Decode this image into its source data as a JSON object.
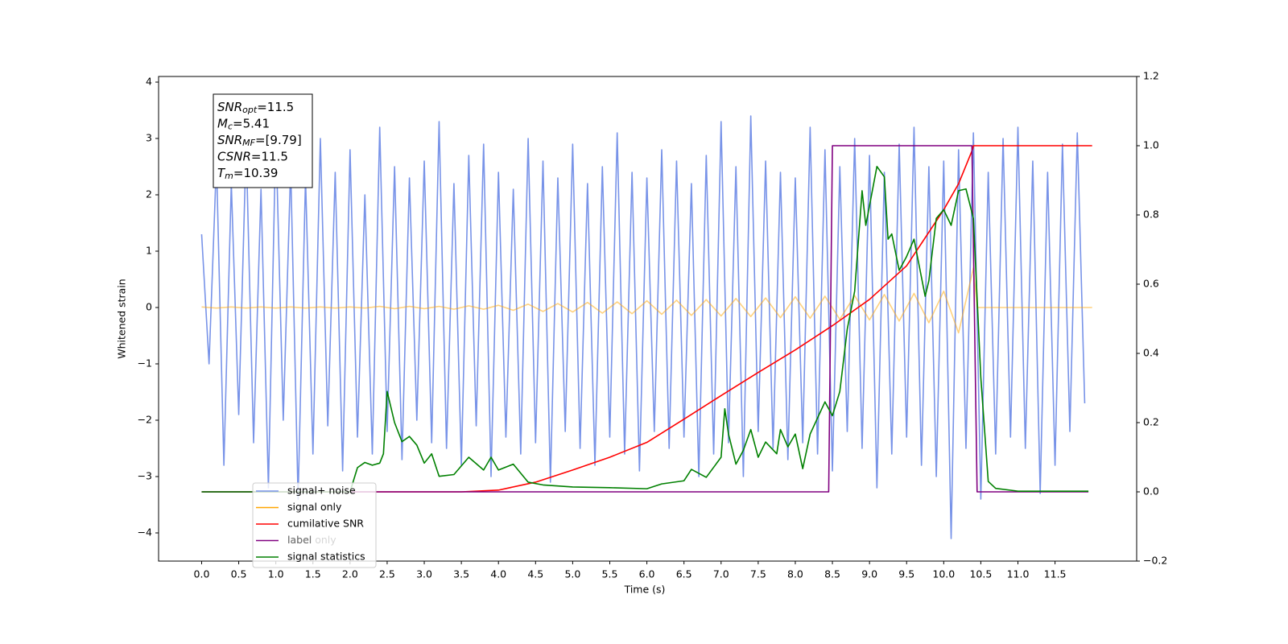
{
  "chart_data": {
    "type": "line",
    "ylabel": "Whitened strain",
    "xlabel": "Time (s)",
    "xlim": [
      -0.58,
      12.6
    ],
    "ylim": [
      -4.5,
      4.1
    ],
    "y2lim": [
      -0.2,
      1.2
    ],
    "xticks": [
      {
        "value": 0,
        "label": "0.0"
      },
      0.5,
      {
        "value": 1,
        "label": "1.0"
      },
      1.5,
      {
        "value": 2,
        "label": "2.0"
      },
      2.5,
      {
        "value": 3,
        "label": "3.0"
      },
      3.5,
      {
        "value": 4,
        "label": "4.0"
      },
      4.5,
      {
        "value": 5,
        "label": "5.0"
      },
      5.5,
      {
        "value": 6,
        "label": "6.0"
      },
      6.5,
      {
        "value": 7,
        "label": "7.0"
      },
      7.5,
      {
        "value": 8,
        "label": "8.0"
      },
      8.5,
      {
        "value": 9,
        "label": "9.0"
      },
      9.5,
      {
        "value": 10,
        "label": "10.0"
      },
      10.5,
      {
        "value": 11,
        "label": "11.0"
      },
      11.5
    ],
    "yticks": [
      {
        "value": -4,
        "label": "−4"
      },
      {
        "value": -3,
        "label": "−3"
      },
      {
        "value": -2,
        "label": "−2"
      },
      {
        "value": -1,
        "label": "−1"
      },
      0,
      1,
      2,
      3,
      4
    ],
    "y2ticks": [
      {
        "value": -0.2,
        "label": "−0.2"
      },
      {
        "value": 0,
        "label": "0.0"
      },
      0.2,
      0.4,
      0.6,
      0.8,
      {
        "value": 1,
        "label": "1.0"
      },
      1.2
    ],
    "legend_loc": "lower left",
    "legend_ghost": "label only",
    "annotations": [
      {
        "base": "SNR",
        "sub": "opt",
        "text": "=11.5"
      },
      {
        "base": "M",
        "sub": "c",
        "text": "=5.41"
      },
      {
        "base": "SNR",
        "sub": "MF",
        "text": "=[9.79]"
      },
      {
        "base": "CSNR",
        "text": "=11.5"
      },
      {
        "base": "T",
        "sub": "m",
        "text": "=10.39"
      }
    ],
    "series": [
      {
        "name": "signal+ noise",
        "color": "#7893e8",
        "opacity": 1,
        "x": [
          0,
          0.1,
          0.2,
          0.3,
          0.4,
          0.5,
          0.6,
          0.7,
          0.8,
          0.9,
          1,
          1.1,
          1.2,
          1.3,
          1.4,
          1.5,
          1.6,
          1.7,
          1.8,
          1.9,
          2,
          2.1,
          2.2,
          2.3,
          2.4,
          2.5,
          2.6,
          2.7,
          2.8,
          2.9,
          3,
          3.1,
          3.2,
          3.3,
          3.4,
          3.5,
          3.6,
          3.7,
          3.8,
          3.9,
          4,
          4.1,
          4.2,
          4.3,
          4.4,
          4.5,
          4.6,
          4.7,
          4.8,
          4.9,
          5,
          5.1,
          5.2,
          5.3,
          5.4,
          5.5,
          5.6,
          5.7,
          5.8,
          5.9,
          6,
          6.1,
          6.2,
          6.3,
          6.4,
          6.5,
          6.6,
          6.7,
          6.8,
          6.9,
          7,
          7.1,
          7.2,
          7.3,
          7.4,
          7.5,
          7.6,
          7.7,
          7.8,
          7.9,
          8,
          8.1,
          8.2,
          8.3,
          8.4,
          8.5,
          8.6,
          8.7,
          8.8,
          8.9,
          9,
          9.1,
          9.2,
          9.3,
          9.4,
          9.5,
          9.6,
          9.7,
          9.8,
          9.9,
          10,
          10.1,
          10.2,
          10.3,
          10.4,
          10.5,
          10.6,
          10.7,
          10.8,
          10.9,
          11,
          11.1,
          11.2,
          11.3,
          11.4,
          11.5,
          11.6,
          11.7,
          11.8,
          11.9
        ],
        "values": [
          1.3,
          -1.0,
          2.6,
          -2.8,
          2.2,
          -1.9,
          2.9,
          -2.4,
          2.1,
          -3.2,
          3.1,
          -2.0,
          2.5,
          -3.4,
          2.3,
          -2.6,
          3.0,
          -2.1,
          2.4,
          -2.9,
          2.8,
          -2.3,
          2.0,
          -2.6,
          3.2,
          -2.2,
          2.5,
          -2.7,
          2.3,
          -2.0,
          2.6,
          -2.4,
          3.3,
          -2.5,
          2.2,
          -2.8,
          2.7,
          -2.1,
          2.9,
          -3.0,
          2.4,
          -2.3,
          2.1,
          -2.6,
          3.0,
          -2.4,
          2.6,
          -3.1,
          2.3,
          -2.2,
          2.9,
          -2.5,
          2.2,
          -2.8,
          2.5,
          -2.3,
          3.1,
          -2.6,
          2.4,
          -2.9,
          2.3,
          -2.2,
          2.8,
          -2.5,
          2.6,
          -2.3,
          2.2,
          -3.0,
          2.7,
          -2.6,
          3.3,
          -2.4,
          2.5,
          -3.0,
          3.4,
          -2.2,
          2.6,
          -2.5,
          2.4,
          -2.7,
          2.3,
          -2.4,
          3.2,
          -2.6,
          2.8,
          -2.9,
          2.5,
          -2.2,
          3.0,
          -2.5,
          2.7,
          -3.2,
          2.4,
          -2.6,
          2.9,
          -2.3,
          3.2,
          -2.8,
          2.5,
          -3.0,
          2.6,
          -4.1,
          2.8,
          -2.5,
          3.1,
          -3.4,
          2.4,
          -2.6,
          3.0,
          -2.3,
          3.2,
          -2.5,
          2.6,
          -3.3,
          2.4,
          -2.8,
          2.9,
          -2.2,
          3.1,
          -1.7
        ]
      },
      {
        "name": "signal only",
        "color": "#ffa500",
        "opacity": 0.5,
        "x": [
          0,
          0.2,
          0.4,
          0.6,
          0.8,
          1,
          1.2,
          1.4,
          1.6,
          1.8,
          2,
          2.2,
          2.4,
          2.6,
          2.8,
          3,
          3.2,
          3.4,
          3.6,
          3.8,
          4,
          4.2,
          4.4,
          4.6,
          4.8,
          5,
          5.2,
          5.4,
          5.6,
          5.8,
          6,
          6.2,
          6.4,
          6.6,
          6.8,
          7,
          7.2,
          7.4,
          7.6,
          7.8,
          8,
          8.2,
          8.4,
          8.6,
          8.8,
          9,
          9.2,
          9.4,
          9.6,
          9.8,
          10,
          10.2,
          10.4,
          10.45,
          12
        ],
        "values": [
          0.01,
          -0.01,
          0.01,
          -0.01,
          0.01,
          -0.01,
          0.01,
          -0.01,
          0.01,
          -0.01,
          0.01,
          -0.01,
          0.02,
          -0.02,
          0.02,
          -0.02,
          0.02,
          -0.03,
          0.03,
          -0.03,
          0.04,
          -0.05,
          0.06,
          -0.07,
          0.07,
          -0.08,
          0.09,
          -0.1,
          0.1,
          -0.11,
          0.12,
          -0.12,
          0.13,
          -0.14,
          0.14,
          -0.15,
          0.16,
          -0.16,
          0.17,
          -0.18,
          0.19,
          -0.19,
          0.2,
          -0.21,
          0.21,
          -0.22,
          0.23,
          -0.24,
          0.25,
          -0.27,
          0.29,
          -0.45,
          0.7,
          0,
          0
        ]
      },
      {
        "name": "cumilative SNR",
        "color": "#ff0000",
        "opacity": 1,
        "axis": "y2",
        "x": [
          0,
          3.5,
          4,
          4.5,
          5,
          5.5,
          6,
          6.5,
          7,
          7.5,
          8,
          8.5,
          9,
          9.5,
          10,
          10.2,
          10.39,
          10.4,
          12
        ],
        "values": [
          0,
          0,
          0.005,
          0.028,
          0.063,
          0.1,
          0.143,
          0.21,
          0.278,
          0.345,
          0.41,
          0.48,
          0.556,
          0.653,
          0.815,
          0.89,
          0.99,
          1,
          1
        ]
      },
      {
        "name": "label",
        "color": "#800080",
        "opacity": 1,
        "axis": "y2",
        "x": [
          0,
          8.45,
          8.5,
          10.38,
          10.45,
          11.95
        ],
        "values": [
          0,
          0,
          1,
          1,
          0,
          0
        ]
      },
      {
        "name": "signal statistics",
        "color": "#008000",
        "opacity": 1,
        "axis": "y2",
        "x": [
          0,
          2,
          2.1,
          2.2,
          2.3,
          2.4,
          2.45,
          2.5,
          2.6,
          2.7,
          2.8,
          2.9,
          3,
          3.1,
          3.2,
          3.4,
          3.6,
          3.8,
          3.9,
          4,
          4.2,
          4.4,
          4.6,
          5,
          5.5,
          6,
          6.2,
          6.5,
          6.6,
          6.8,
          7,
          7.05,
          7.1,
          7.2,
          7.3,
          7.4,
          7.5,
          7.6,
          7.75,
          7.8,
          7.9,
          8,
          8.1,
          8.2,
          8.4,
          8.5,
          8.6,
          8.7,
          8.8,
          8.9,
          8.95,
          9.1,
          9.2,
          9.25,
          9.3,
          9.4,
          9.5,
          9.6,
          9.75,
          9.8,
          9.9,
          10,
          10.1,
          10.2,
          10.3,
          10.4,
          10.5,
          10.6,
          10.7,
          11,
          11.95
        ],
        "values": [
          0,
          0,
          0.07,
          0.085,
          0.077,
          0.083,
          0.11,
          0.29,
          0.2,
          0.145,
          0.16,
          0.135,
          0.083,
          0.11,
          0.045,
          0.05,
          0.1,
          0.063,
          0.1,
          0.063,
          0.08,
          0.028,
          0.02,
          0.014,
          0.012,
          0.009,
          0.023,
          0.032,
          0.065,
          0.042,
          0.1,
          0.24,
          0.167,
          0.08,
          0.12,
          0.18,
          0.1,
          0.144,
          0.11,
          0.18,
          0.13,
          0.167,
          0.067,
          0.167,
          0.26,
          0.22,
          0.29,
          0.47,
          0.58,
          0.87,
          0.77,
          0.94,
          0.91,
          0.73,
          0.745,
          0.64,
          0.68,
          0.73,
          0.565,
          0.61,
          0.79,
          0.815,
          0.77,
          0.87,
          0.875,
          0.79,
          0.33,
          0.03,
          0.01,
          0.002,
          0.002
        ]
      }
    ]
  }
}
